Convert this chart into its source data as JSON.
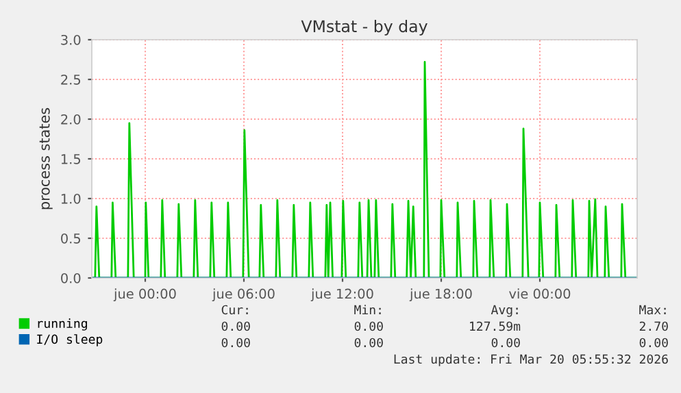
{
  "chart_data": {
    "type": "line",
    "title": "VMstat - by day",
    "ylabel": "process states",
    "xlim": [
      "2026-03-18T20:45",
      "2026-03-20T05:55"
    ],
    "ylim": [
      0,
      3.0
    ],
    "xticks": [
      {
        "value": "2026-03-19T00:00",
        "label": "jue 00:00"
      },
      {
        "value": "2026-03-19T06:00",
        "label": "jue 06:00"
      },
      {
        "value": "2026-03-19T12:00",
        "label": "jue 12:00"
      },
      {
        "value": "2026-03-19T18:00",
        "label": "jue 18:00"
      },
      {
        "value": "2026-03-20T00:00",
        "label": "vie 00:00"
      }
    ],
    "yticks": [
      {
        "value": 0,
        "label": "0.0"
      },
      {
        "value": 0.5,
        "label": "0.5"
      },
      {
        "value": 1,
        "label": "1.0"
      },
      {
        "value": 1.5,
        "label": "1.5"
      },
      {
        "value": 2,
        "label": "2.0"
      },
      {
        "value": 2.5,
        "label": "2.5"
      },
      {
        "value": 3,
        "label": "3.0"
      }
    ],
    "grid": true,
    "legend": "bottom left",
    "series": [
      {
        "name": "running",
        "color": "#00cc00",
        "x": [
          "2026-03-18T20:45",
          "2026-03-18T20:57",
          "2026-03-18T21:02",
          "2026-03-18T21:12",
          "2026-03-18T21:57",
          "2026-03-18T22:01",
          "2026-03-18T22:12",
          "2026-03-18T22:57",
          "2026-03-18T23:02",
          "2026-03-18T23:18",
          "2026-03-19T00:00",
          "2026-03-19T00:02",
          "2026-03-19T00:12",
          "2026-03-19T00:57",
          "2026-03-19T01:02",
          "2026-03-19T01:12",
          "2026-03-19T01:57",
          "2026-03-19T02:02",
          "2026-03-19T02:12",
          "2026-03-19T02:57",
          "2026-03-19T03:02",
          "2026-03-19T03:12",
          "2026-03-19T03:57",
          "2026-03-19T04:02",
          "2026-03-19T04:12",
          "2026-03-19T04:57",
          "2026-03-19T05:02",
          "2026-03-19T05:12",
          "2026-03-19T05:57",
          "2026-03-19T06:02",
          "2026-03-19T06:18",
          "2026-03-19T06:57",
          "2026-03-19T07:02",
          "2026-03-19T07:12",
          "2026-03-19T07:57",
          "2026-03-19T08:02",
          "2026-03-19T08:12",
          "2026-03-19T08:57",
          "2026-03-19T09:02",
          "2026-03-19T09:12",
          "2026-03-19T09:57",
          "2026-03-19T10:02",
          "2026-03-19T10:12",
          "2026-03-19T10:57",
          "2026-03-19T11:02",
          "2026-03-19T11:08",
          "2026-03-19T11:15",
          "2026-03-19T11:24",
          "2026-03-19T11:57",
          "2026-03-19T12:02",
          "2026-03-19T12:12",
          "2026-03-19T12:57",
          "2026-03-19T13:02",
          "2026-03-19T13:12",
          "2026-03-19T13:30",
          "2026-03-19T13:35",
          "2026-03-19T13:45",
          "2026-03-19T13:57",
          "2026-03-19T14:02",
          "2026-03-19T14:12",
          "2026-03-19T14:57",
          "2026-03-19T15:02",
          "2026-03-19T15:12",
          "2026-03-19T15:54",
          "2026-03-19T16:00",
          "2026-03-19T16:09",
          "2026-03-19T16:18",
          "2026-03-19T16:27",
          "2026-03-19T16:57",
          "2026-03-19T17:00",
          "2026-03-19T17:15",
          "2026-03-19T17:57",
          "2026-03-19T18:00",
          "2026-03-19T18:12",
          "2026-03-19T18:57",
          "2026-03-19T19:00",
          "2026-03-19T19:12",
          "2026-03-19T19:57",
          "2026-03-19T20:00",
          "2026-03-19T20:12",
          "2026-03-19T20:57",
          "2026-03-19T21:00",
          "2026-03-19T21:12",
          "2026-03-19T21:57",
          "2026-03-19T22:00",
          "2026-03-19T22:12",
          "2026-03-19T22:57",
          "2026-03-19T23:00",
          "2026-03-19T23:18",
          "2026-03-19T23:57",
          "2026-03-20T00:00",
          "2026-03-20T00:12",
          "2026-03-20T00:57",
          "2026-03-20T01:00",
          "2026-03-20T01:12",
          "2026-03-20T01:57",
          "2026-03-20T02:00",
          "2026-03-20T02:12",
          "2026-03-20T02:57",
          "2026-03-20T03:00",
          "2026-03-20T03:09",
          "2026-03-20T03:22",
          "2026-03-20T03:30",
          "2026-03-20T03:57",
          "2026-03-20T04:00",
          "2026-03-20T04:12",
          "2026-03-20T04:57",
          "2026-03-20T05:00",
          "2026-03-20T05:12",
          "2026-03-20T05:55"
        ],
        "values": [
          0,
          0,
          0.9,
          0,
          0,
          0.95,
          0,
          0,
          1.95,
          0,
          0,
          0.95,
          0,
          0,
          0.98,
          0,
          0,
          0.93,
          0,
          0,
          0.98,
          0,
          0,
          0.95,
          0,
          0,
          0.95,
          0,
          0,
          1.86,
          0,
          0,
          0.92,
          0,
          0,
          0.98,
          0,
          0,
          0.92,
          0,
          0,
          0.95,
          0,
          0,
          0.92,
          0,
          0.95,
          0,
          0,
          0.97,
          0,
          0,
          0.95,
          0,
          0,
          0.98,
          0,
          0,
          0.98,
          0,
          0,
          0.93,
          0,
          0,
          0.97,
          0,
          0.9,
          0,
          0,
          2.72,
          0,
          0,
          0.98,
          0,
          0,
          0.95,
          0,
          0,
          0.97,
          0,
          0,
          0.98,
          0,
          0,
          0.93,
          0,
          0,
          1.88,
          0,
          0,
          0.95,
          0,
          0,
          0.92,
          0,
          0,
          0.98,
          0,
          0,
          0.97,
          0,
          0.99,
          0,
          0,
          0.9,
          0,
          0,
          0.93,
          0,
          0
        ]
      },
      {
        "name": "I/O sleep",
        "color": "#0066b3",
        "x": [
          "2026-03-18T20:45",
          "2026-03-20T05:55"
        ],
        "values": [
          0,
          0
        ]
      }
    ],
    "annotations": [
      "Cur:",
      "Min:",
      "Avg:",
      "Max:",
      "0.00",
      "0.00",
      "127.59m",
      "2.70",
      "0.00",
      "0.00",
      "0.00",
      "0.00",
      "Last update: Fri Mar 20 05:55:32 2026"
    ]
  }
}
